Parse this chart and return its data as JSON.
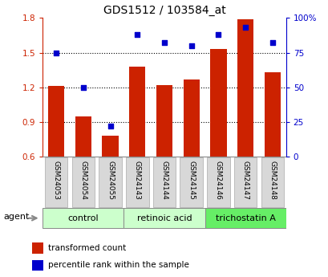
{
  "title": "GDS1512 / 103584_at",
  "categories": [
    "GSM24053",
    "GSM24054",
    "GSM24055",
    "GSM24143",
    "GSM24144",
    "GSM24145",
    "GSM24146",
    "GSM24147",
    "GSM24148"
  ],
  "bar_values": [
    1.21,
    0.95,
    0.78,
    1.38,
    1.22,
    1.27,
    1.53,
    1.79,
    1.33
  ],
  "scatter_values": [
    75,
    50,
    22,
    88,
    82,
    80,
    88,
    93,
    82
  ],
  "bar_color": "#cc2200",
  "scatter_color": "#0000cc",
  "bar_bottom": 0.6,
  "ylim_left": [
    0.6,
    1.8
  ],
  "ylim_right": [
    0,
    100
  ],
  "yticks_left": [
    0.6,
    0.9,
    1.2,
    1.5,
    1.8
  ],
  "ytick_labels_left": [
    "0.6",
    "0.9",
    "1.2",
    "1.5",
    "1.8"
  ],
  "yticks_right": [
    0,
    25,
    50,
    75,
    100
  ],
  "ytick_labels_right": [
    "0",
    "25",
    "50",
    "75",
    "100%"
  ],
  "groups": [
    {
      "label": "control",
      "start": 0,
      "end": 3,
      "color": "#ccffcc"
    },
    {
      "label": "retinoic acid",
      "start": 3,
      "end": 6,
      "color": "#ccffcc"
    },
    {
      "label": "trichostatin A",
      "start": 6,
      "end": 9,
      "color": "#66ee66"
    }
  ],
  "agent_label": "agent",
  "legend_bar": "transformed count",
  "legend_scatter": "percentile rank within the sample",
  "grid_yticks": [
    0.9,
    1.2,
    1.5
  ],
  "tick_label_bg": "#d8d8d8",
  "tick_label_border": "#aaaaaa"
}
